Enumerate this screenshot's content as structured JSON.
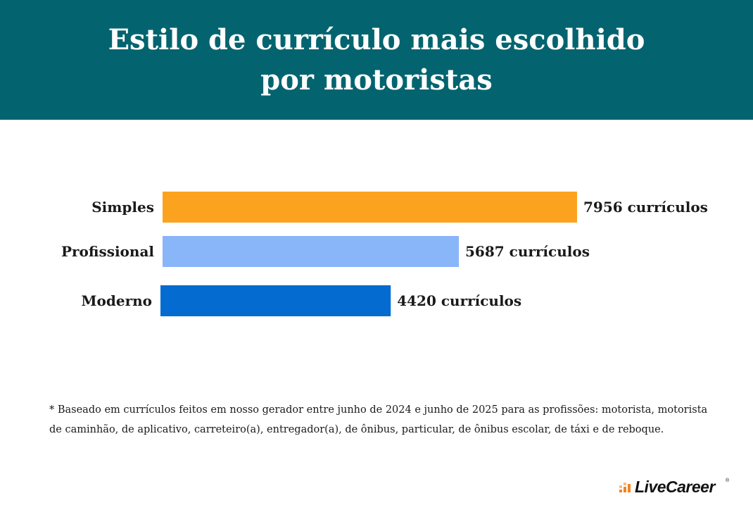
{
  "header": {
    "title_line1": "Estilo de currículo mais escolhido",
    "title_line2": "por motoristas",
    "background_color": "#03646f"
  },
  "chart_data": {
    "type": "bar",
    "orientation": "horizontal",
    "categories": [
      "Simples",
      "Profissional",
      "Moderno"
    ],
    "values": [
      7956,
      5687,
      4420
    ],
    "value_labels": [
      "7956 currículos",
      "5687 currículos",
      "4420 currículos"
    ],
    "colors": [
      "#fba31f",
      "#89b5f9",
      "#046bd0"
    ],
    "title": "Estilo de currículo mais escolhido por motoristas",
    "xlabel": "",
    "ylabel": "",
    "grid": false,
    "legend": "none"
  },
  "footnote": {
    "line1": "* Baseado em currículos feitos em nosso gerador entre junho de 2024 e junho de 2025 para as profissões: motorista, motorista",
    "line2": "de caminhão, de aplicativo, carreteiro(a), entregador(a), de ônibus, particular, de ônibus escolar, de táxi e de reboque."
  },
  "logo": {
    "text": "LiveCareer",
    "registered": "®",
    "accent_color": "#f58220",
    "icon": "livecareer-bars-icon"
  }
}
